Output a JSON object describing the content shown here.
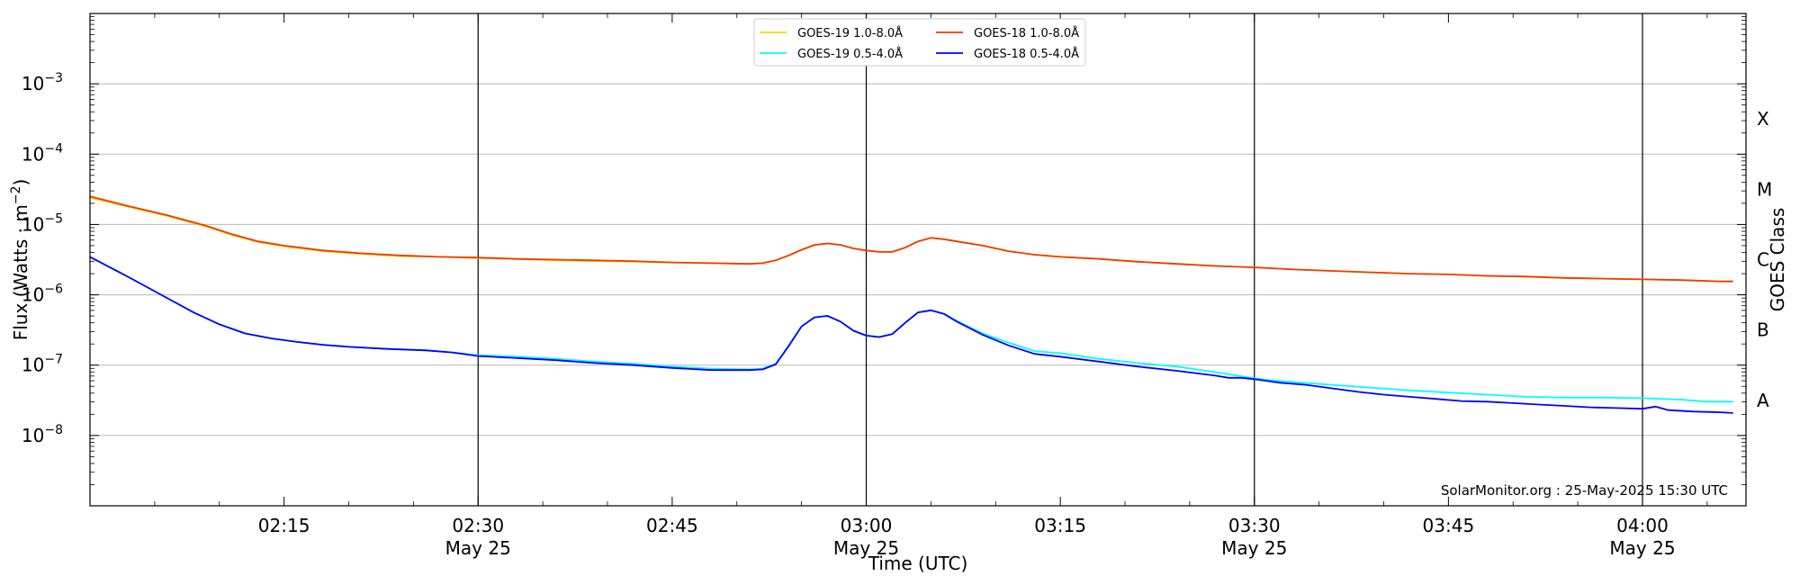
{
  "chart_data": {
    "type": "line",
    "xlabel": "Time (UTC)",
    "ylabel_main": "Flux (Watts · m",
    "ylabel_sup": "−2",
    "ylabel_close": ")",
    "right_axis_label": "GOES Class",
    "credit": "SolarMonitor.org : 25-May-2025 15:30 UTC",
    "x_range_minutes": [
      0,
      128
    ],
    "ylim_log10": [
      -9,
      -2
    ],
    "y_scale": "log",
    "grid": "horizontal",
    "legend_location": "top-center",
    "x_ticks": [
      {
        "minute": 15,
        "time": "02:15",
        "date": ""
      },
      {
        "minute": 30,
        "time": "02:30",
        "date": "May 25"
      },
      {
        "minute": 45,
        "time": "02:45",
        "date": ""
      },
      {
        "minute": 60,
        "time": "03:00",
        "date": "May 25"
      },
      {
        "minute": 75,
        "time": "03:15",
        "date": ""
      },
      {
        "minute": 90,
        "time": "03:30",
        "date": "May 25"
      },
      {
        "minute": 105,
        "time": "03:45",
        "date": ""
      },
      {
        "minute": 120,
        "time": "04:00",
        "date": "May 25"
      }
    ],
    "vlines_minutes": [
      30,
      60,
      90,
      120
    ],
    "y_ticks": [
      {
        "exp": -8,
        "base": "10",
        "sup": "−8"
      },
      {
        "exp": -7,
        "base": "10",
        "sup": "−7"
      },
      {
        "exp": -6,
        "base": "10",
        "sup": "−6"
      },
      {
        "exp": -5,
        "base": "10",
        "sup": "−5"
      },
      {
        "exp": -4,
        "base": "10",
        "sup": "−4"
      },
      {
        "exp": -3,
        "base": "10",
        "sup": "−3"
      }
    ],
    "goes_classes": [
      {
        "label": "A",
        "exp": -7.5
      },
      {
        "label": "B",
        "exp": -6.5
      },
      {
        "label": "C",
        "exp": -5.5
      },
      {
        "label": "M",
        "exp": -4.5
      },
      {
        "label": "X",
        "exp": -3.5
      }
    ],
    "series": [
      {
        "name": "GOES-19 1.0-8.0Å",
        "color": "#ffd700",
        "points": [
          [
            0,
            -4.62
          ],
          [
            3,
            -4.75
          ],
          [
            6,
            -4.88
          ],
          [
            9,
            -5.03
          ],
          [
            11,
            -5.15
          ],
          [
            13,
            -5.25
          ],
          [
            15,
            -5.31
          ],
          [
            18,
            -5.38
          ],
          [
            21,
            -5.42
          ],
          [
            24,
            -5.45
          ],
          [
            27,
            -5.46
          ],
          [
            30,
            -5.48
          ],
          [
            33,
            -5.49
          ],
          [
            36,
            -5.51
          ],
          [
            39,
            -5.52
          ],
          [
            42,
            -5.53
          ],
          [
            45,
            -5.54
          ],
          [
            48,
            -5.55
          ],
          [
            51,
            -5.56
          ],
          [
            52,
            -5.55
          ],
          [
            53,
            -5.51
          ],
          [
            54,
            -5.44
          ],
          [
            55,
            -5.36
          ],
          [
            56,
            -5.29
          ],
          [
            57,
            -5.27
          ],
          [
            58,
            -5.29
          ],
          [
            59,
            -5.34
          ],
          [
            60,
            -5.37
          ],
          [
            61,
            -5.39
          ],
          [
            62,
            -5.39
          ],
          [
            63,
            -5.33
          ],
          [
            64,
            -5.24
          ],
          [
            65,
            -5.19
          ],
          [
            66,
            -5.21
          ],
          [
            67,
            -5.24
          ],
          [
            69,
            -5.3
          ],
          [
            71,
            -5.38
          ],
          [
            73,
            -5.43
          ],
          [
            75,
            -5.46
          ],
          [
            78,
            -5.49
          ],
          [
            81,
            -5.53
          ],
          [
            84,
            -5.56
          ],
          [
            87,
            -5.59
          ],
          [
            90,
            -5.61
          ],
          [
            93,
            -5.64
          ],
          [
            96,
            -5.66
          ],
          [
            99,
            -5.68
          ],
          [
            102,
            -5.7
          ],
          [
            105,
            -5.71
          ],
          [
            108,
            -5.73
          ],
          [
            111,
            -5.74
          ],
          [
            114,
            -5.76
          ],
          [
            117,
            -5.77
          ],
          [
            120,
            -5.78
          ],
          [
            123,
            -5.79
          ],
          [
            126,
            -5.81
          ],
          [
            127,
            -5.81
          ]
        ]
      },
      {
        "name": "GOES-19 0.5-4.0Å",
        "color": "#00ffff",
        "points": [
          [
            0,
            -5.46
          ],
          [
            3,
            -5.75
          ],
          [
            6,
            -6.05
          ],
          [
            8,
            -6.25
          ],
          [
            10,
            -6.42
          ],
          [
            12,
            -6.55
          ],
          [
            14,
            -6.62
          ],
          [
            16,
            -6.67
          ],
          [
            18,
            -6.71
          ],
          [
            20,
            -6.74
          ],
          [
            23,
            -6.77
          ],
          [
            26,
            -6.79
          ],
          [
            28,
            -6.82
          ],
          [
            30,
            -6.86
          ],
          [
            33,
            -6.88
          ],
          [
            36,
            -6.91
          ],
          [
            39,
            -6.95
          ],
          [
            42,
            -6.98
          ],
          [
            45,
            -7.02
          ],
          [
            48,
            -7.05
          ],
          [
            51,
            -7.06
          ],
          [
            52,
            -7.05
          ],
          [
            53,
            -6.98
          ],
          [
            54,
            -6.72
          ],
          [
            55,
            -6.45
          ],
          [
            56,
            -6.32
          ],
          [
            57,
            -6.3
          ],
          [
            58,
            -6.38
          ],
          [
            59,
            -6.51
          ],
          [
            60,
            -6.58
          ],
          [
            61,
            -6.6
          ],
          [
            62,
            -6.56
          ],
          [
            63,
            -6.4
          ],
          [
            64,
            -6.25
          ],
          [
            65,
            -6.22
          ],
          [
            66,
            -6.27
          ],
          [
            67,
            -6.37
          ],
          [
            69,
            -6.55
          ],
          [
            71,
            -6.68
          ],
          [
            73,
            -6.8
          ],
          [
            75,
            -6.83
          ],
          [
            78,
            -6.91
          ],
          [
            81,
            -6.97
          ],
          [
            84,
            -7.02
          ],
          [
            87,
            -7.1
          ],
          [
            89,
            -7.16
          ],
          [
            91,
            -7.21
          ],
          [
            93,
            -7.24
          ],
          [
            96,
            -7.28
          ],
          [
            99,
            -7.32
          ],
          [
            102,
            -7.36
          ],
          [
            105,
            -7.39
          ],
          [
            108,
            -7.42
          ],
          [
            111,
            -7.45
          ],
          [
            114,
            -7.46
          ],
          [
            117,
            -7.46
          ],
          [
            120,
            -7.47
          ],
          [
            123,
            -7.49
          ],
          [
            125,
            -7.52
          ],
          [
            127,
            -7.52
          ]
        ]
      },
      {
        "name": "GOES-18 1.0-8.0Å",
        "color": "#ee3b00",
        "points": [
          [
            0,
            -4.6
          ],
          [
            3,
            -4.74
          ],
          [
            6,
            -4.87
          ],
          [
            9,
            -5.02
          ],
          [
            11,
            -5.14
          ],
          [
            13,
            -5.24
          ],
          [
            15,
            -5.3
          ],
          [
            18,
            -5.37
          ],
          [
            21,
            -5.41
          ],
          [
            24,
            -5.44
          ],
          [
            27,
            -5.46
          ],
          [
            30,
            -5.47
          ],
          [
            33,
            -5.49
          ],
          [
            36,
            -5.5
          ],
          [
            39,
            -5.51
          ],
          [
            42,
            -5.52
          ],
          [
            45,
            -5.54
          ],
          [
            48,
            -5.55
          ],
          [
            51,
            -5.56
          ],
          [
            52,
            -5.55
          ],
          [
            53,
            -5.51
          ],
          [
            54,
            -5.44
          ],
          [
            55,
            -5.36
          ],
          [
            56,
            -5.29
          ],
          [
            57,
            -5.27
          ],
          [
            58,
            -5.29
          ],
          [
            59,
            -5.34
          ],
          [
            60,
            -5.37
          ],
          [
            61,
            -5.39
          ],
          [
            62,
            -5.39
          ],
          [
            63,
            -5.33
          ],
          [
            64,
            -5.24
          ],
          [
            65,
            -5.19
          ],
          [
            66,
            -5.21
          ],
          [
            67,
            -5.24
          ],
          [
            69,
            -5.3
          ],
          [
            71,
            -5.38
          ],
          [
            73,
            -5.43
          ],
          [
            75,
            -5.46
          ],
          [
            78,
            -5.49
          ],
          [
            81,
            -5.53
          ],
          [
            84,
            -5.56
          ],
          [
            87,
            -5.59
          ],
          [
            90,
            -5.61
          ],
          [
            93,
            -5.64
          ],
          [
            96,
            -5.66
          ],
          [
            99,
            -5.68
          ],
          [
            102,
            -5.7
          ],
          [
            105,
            -5.71
          ],
          [
            108,
            -5.73
          ],
          [
            111,
            -5.74
          ],
          [
            114,
            -5.76
          ],
          [
            117,
            -5.77
          ],
          [
            120,
            -5.78
          ],
          [
            123,
            -5.79
          ],
          [
            126,
            -5.81
          ],
          [
            127,
            -5.81
          ]
        ]
      },
      {
        "name": "GOES-18 0.5-4.0Å",
        "color": "#0000ff",
        "points": [
          [
            0,
            -5.46
          ],
          [
            3,
            -5.75
          ],
          [
            6,
            -6.05
          ],
          [
            8,
            -6.25
          ],
          [
            10,
            -6.42
          ],
          [
            12,
            -6.55
          ],
          [
            14,
            -6.62
          ],
          [
            16,
            -6.67
          ],
          [
            18,
            -6.71
          ],
          [
            20,
            -6.74
          ],
          [
            23,
            -6.77
          ],
          [
            26,
            -6.79
          ],
          [
            28,
            -6.82
          ],
          [
            30,
            -6.87
          ],
          [
            33,
            -6.9
          ],
          [
            36,
            -6.93
          ],
          [
            39,
            -6.97
          ],
          [
            42,
            -7.0
          ],
          [
            45,
            -7.04
          ],
          [
            48,
            -7.07
          ],
          [
            51,
            -7.07
          ],
          [
            52,
            -7.06
          ],
          [
            53,
            -6.99
          ],
          [
            54,
            -6.73
          ],
          [
            55,
            -6.45
          ],
          [
            56,
            -6.32
          ],
          [
            57,
            -6.3
          ],
          [
            58,
            -6.38
          ],
          [
            59,
            -6.51
          ],
          [
            60,
            -6.58
          ],
          [
            61,
            -6.6
          ],
          [
            62,
            -6.56
          ],
          [
            63,
            -6.4
          ],
          [
            64,
            -6.25
          ],
          [
            65,
            -6.22
          ],
          [
            66,
            -6.27
          ],
          [
            67,
            -6.38
          ],
          [
            69,
            -6.57
          ],
          [
            71,
            -6.72
          ],
          [
            73,
            -6.84
          ],
          [
            75,
            -6.88
          ],
          [
            78,
            -6.95
          ],
          [
            81,
            -7.02
          ],
          [
            84,
            -7.08
          ],
          [
            87,
            -7.15
          ],
          [
            88,
            -7.18
          ],
          [
            89,
            -7.18
          ],
          [
            90,
            -7.2
          ],
          [
            92,
            -7.25
          ],
          [
            94,
            -7.28
          ],
          [
            96,
            -7.33
          ],
          [
            98,
            -7.38
          ],
          [
            100,
            -7.42
          ],
          [
            102,
            -7.45
          ],
          [
            104,
            -7.48
          ],
          [
            106,
            -7.51
          ],
          [
            108,
            -7.52
          ],
          [
            110,
            -7.54
          ],
          [
            112,
            -7.56
          ],
          [
            114,
            -7.58
          ],
          [
            116,
            -7.6
          ],
          [
            118,
            -7.61
          ],
          [
            120,
            -7.62
          ],
          [
            121,
            -7.59
          ],
          [
            122,
            -7.64
          ],
          [
            124,
            -7.66
          ],
          [
            126,
            -7.67
          ],
          [
            127,
            -7.68
          ]
        ]
      }
    ],
    "legend_order": [
      0,
      1,
      2,
      3
    ]
  }
}
